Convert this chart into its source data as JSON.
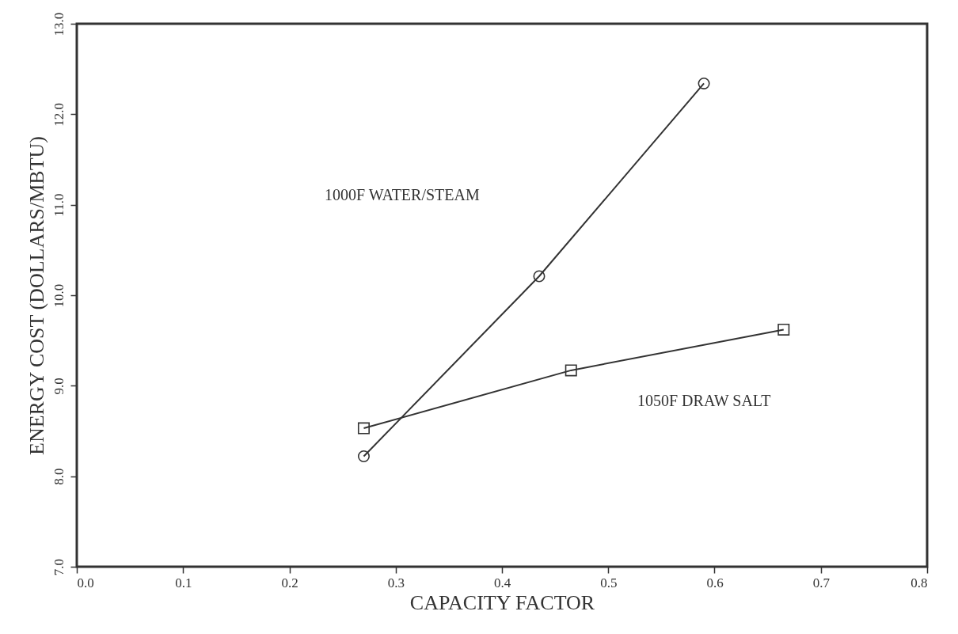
{
  "chart_data": {
    "type": "line",
    "xlabel": "CAPACITY FACTOR",
    "ylabel": "ENERGY COST (DOLLARS/MBTU)",
    "xlim": [
      0.0,
      0.8
    ],
    "xticks": [
      {
        "value": 0,
        "label": "0.0"
      },
      {
        "value": 0.1,
        "label": "0.1"
      },
      {
        "value": 0.2,
        "label": "0.2"
      },
      {
        "value": 0.3,
        "label": "0.3"
      },
      {
        "value": 0.4,
        "label": "0.4"
      },
      {
        "value": 0.5,
        "label": "0.5"
      },
      {
        "value": 0.6,
        "label": "0.6"
      },
      {
        "value": 0.7,
        "label": "0.7"
      },
      {
        "value": 0.8,
        "label": "0.8"
      }
    ],
    "ylim": [
      7.0,
      13.0
    ],
    "yticks": [
      {
        "value": 7,
        "label": "7.0"
      },
      {
        "value": 8,
        "label": "8.0"
      },
      {
        "value": 9,
        "label": "9.0"
      },
      {
        "value": 10,
        "label": "10.0"
      },
      {
        "value": 11,
        "label": "11.0"
      },
      {
        "value": 12,
        "label": "12.0"
      },
      {
        "value": 13,
        "label": "13.0"
      }
    ],
    "grid": false,
    "line_style": "solid",
    "series": [
      {
        "color": "#333333",
        "marker": "circle",
        "x": [
          0.27,
          0.435,
          0.59
        ],
        "values": [
          8.22,
          10.21,
          12.34
        ]
      },
      {
        "color": "#333333",
        "marker": "square",
        "x": [
          0.27,
          0.465,
          0.665
        ],
        "values": [
          8.53,
          9.17,
          9.62
        ]
      }
    ],
    "annotations": [
      "1000F WATER/STEAM",
      "1050F DRAW SALT"
    ]
  }
}
